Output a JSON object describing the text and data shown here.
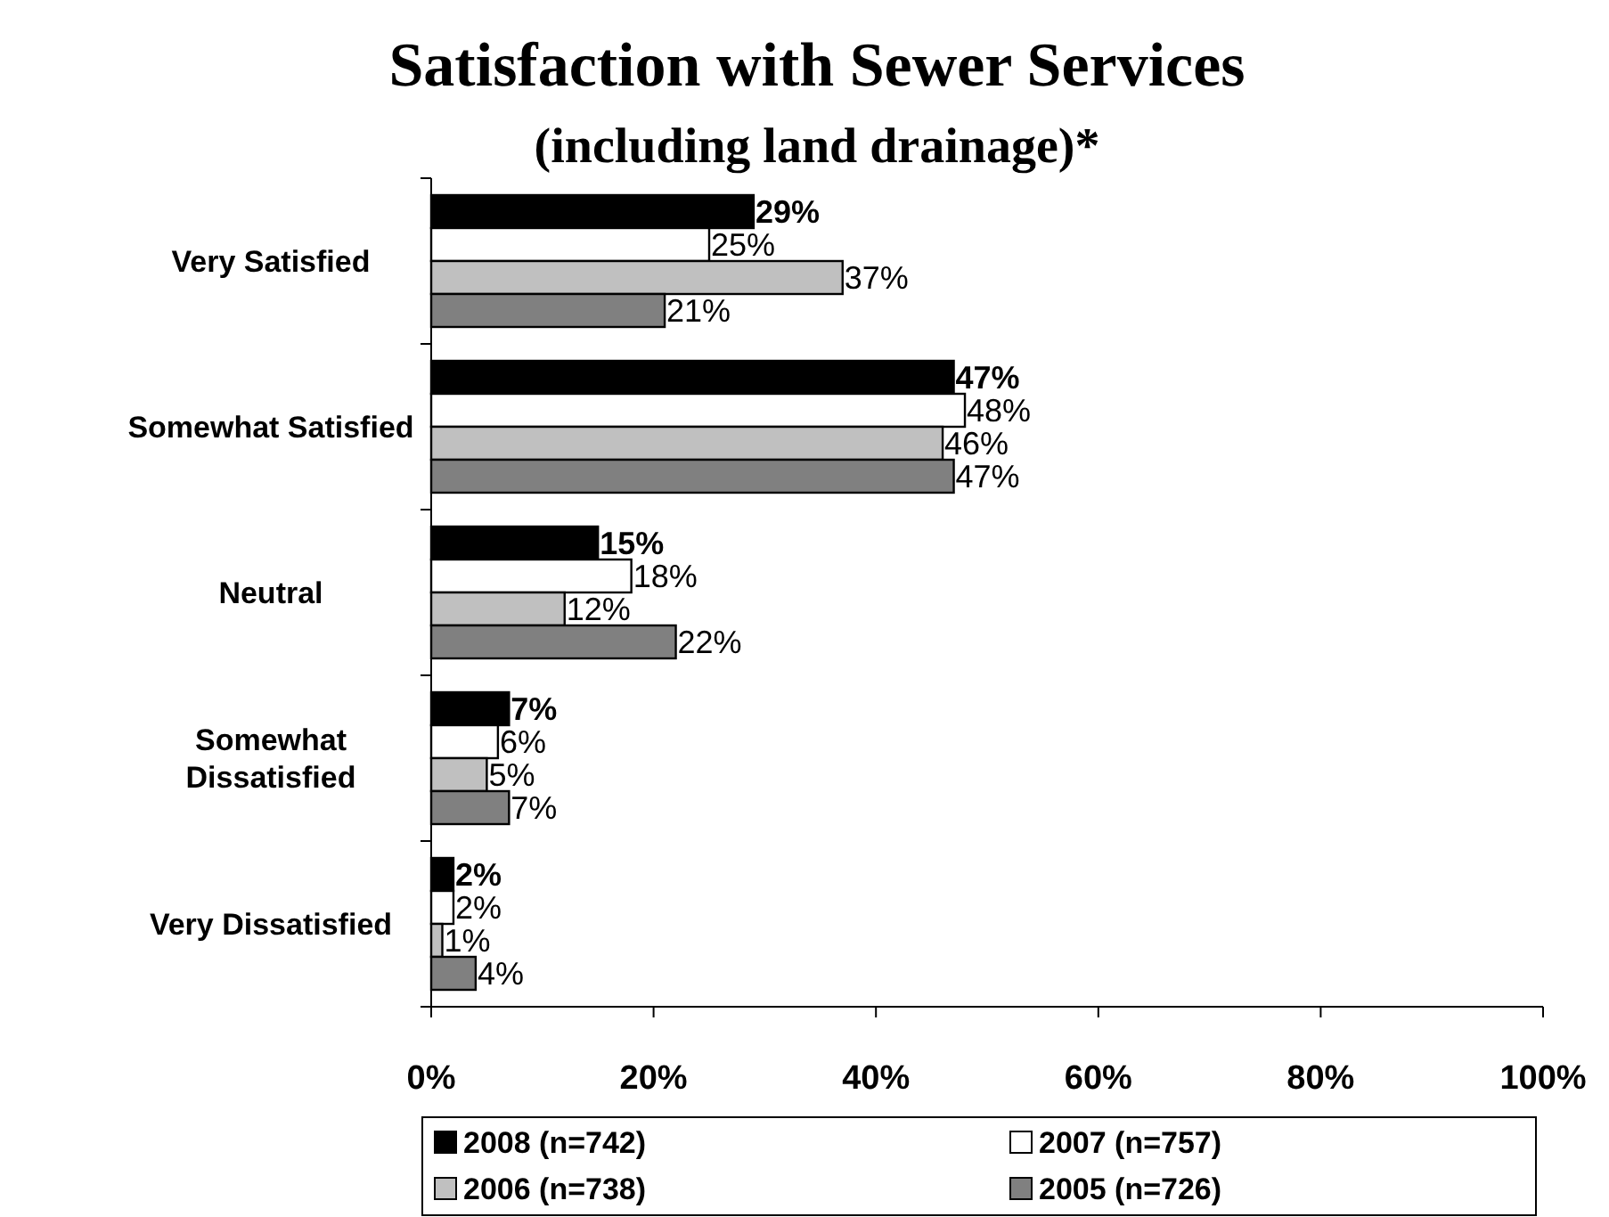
{
  "chart_data": {
    "type": "bar",
    "orientation": "horizontal",
    "title": "Satisfaction with Sewer Services",
    "subtitle": "(including land drainage)*",
    "categories": [
      "Very Satisfied",
      "Somewhat Satisfied",
      "Neutral",
      "Somewhat Dissatisfied",
      "Very Dissatisfied"
    ],
    "series": [
      {
        "name": "2008 (n=742)",
        "color": "#000000",
        "values": [
          29,
          47,
          15,
          7,
          2
        ],
        "value_labels": [
          "29%",
          "47%",
          "15%",
          "7%",
          "2%"
        ]
      },
      {
        "name": "2007 (n=757)",
        "color": "#ffffff",
        "values": [
          25,
          48,
          18,
          6,
          2
        ],
        "value_labels": [
          "25%",
          "48%",
          "18%",
          "6%",
          "2%"
        ]
      },
      {
        "name": "2006 (n=738)",
        "color": "#c0c0c0",
        "values": [
          37,
          46,
          12,
          5,
          1
        ],
        "value_labels": [
          "37%",
          "46%",
          "12%",
          "5%",
          "1%"
        ]
      },
      {
        "name": "2005 (n=726)",
        "color": "#808080",
        "values": [
          21,
          47,
          22,
          7,
          4
        ],
        "value_labels": [
          "21%",
          "47%",
          "22%",
          "7%",
          "4%"
        ]
      }
    ],
    "xlim": [
      0,
      100
    ],
    "xticks": [
      {
        "value": 0,
        "label": "0%"
      },
      {
        "value": 20,
        "label": "20%"
      },
      {
        "value": 40,
        "label": "40%"
      },
      {
        "value": 60,
        "label": "60%"
      },
      {
        "value": 80,
        "label": "80%"
      },
      {
        "value": 100,
        "label": "100%"
      }
    ],
    "grid": false,
    "legend": "bottom"
  }
}
